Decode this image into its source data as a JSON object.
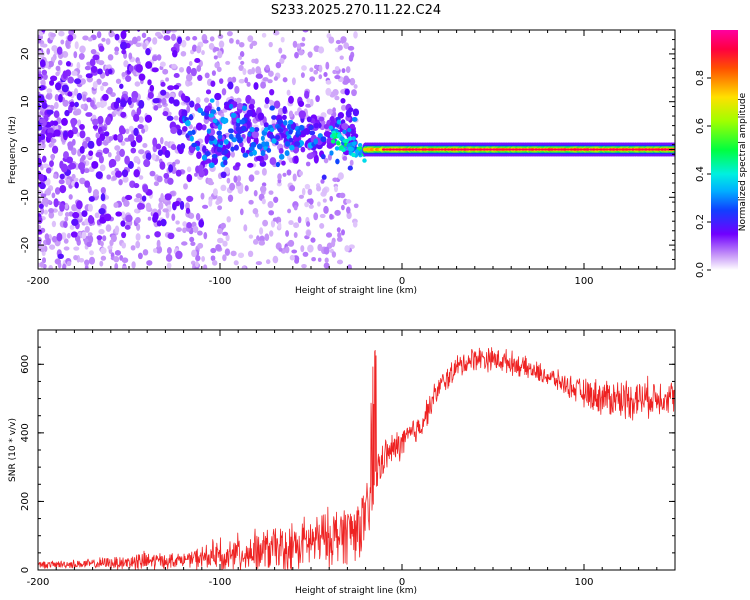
{
  "title": "S233.2025.270.11.22.C24",
  "chart_data": [
    {
      "type": "heatmap",
      "name": "spectrogram",
      "xlabel": "Height of straight line (km)",
      "ylabel": "Frequency (Hz)",
      "xlim": [
        -200,
        150
      ],
      "ylim": [
        -25,
        25
      ],
      "x_ticks": [
        "-200",
        "-100",
        "0",
        "100"
      ],
      "x_tick_values": [
        -200,
        -100,
        0,
        100
      ],
      "y_ticks": [
        "-20",
        "-10",
        "0",
        "10",
        "20"
      ],
      "y_tick_values": [
        -20,
        -10,
        0,
        10,
        20
      ],
      "colorbar": {
        "label": "Normalized spectral amplitude",
        "range": [
          0,
          1
        ],
        "ticks": [
          "0.0",
          "0.2",
          "0.4",
          "0.6",
          "0.8"
        ],
        "tick_values": [
          0.0,
          0.2,
          0.4,
          0.6,
          0.8
        ],
        "colormap": [
          "#ffffff",
          "#b870f0",
          "#6a00ff",
          "#1060ff",
          "#00e0ff",
          "#00ff40",
          "#c0ff00",
          "#ffd000",
          "#ff4000",
          "#ff0080"
        ]
      },
      "features": {
        "carrier_line": {
          "x_start": -20,
          "x_end": 150,
          "frequency": 0,
          "amplitude": 0.9
        },
        "scatter_region": {
          "x_start": -200,
          "x_end": -25,
          "freq_spread": 25
        }
      }
    },
    {
      "type": "line",
      "name": "snr",
      "xlabel": "Height of straight line (km)",
      "ylabel": "SNR (10 * v/v)",
      "xlim": [
        -200,
        150
      ],
      "ylim": [
        0,
        700
      ],
      "x_ticks": [
        "-200",
        "-100",
        "0",
        "100"
      ],
      "x_tick_values": [
        -200,
        -100,
        0,
        100
      ],
      "y_ticks": [
        "0",
        "200",
        "400",
        "600"
      ],
      "y_tick_values": [
        0,
        200,
        400,
        600
      ],
      "color": "#ee2222",
      "envelope": {
        "x": [
          -200,
          -170,
          -140,
          -120,
          -100,
          -80,
          -60,
          -40,
          -25,
          -18,
          -15,
          -10,
          0,
          10,
          20,
          30,
          40,
          50,
          60,
          70,
          80,
          90,
          100,
          110,
          120,
          130,
          140,
          150
        ],
        "mean": [
          15,
          18,
          25,
          30,
          40,
          55,
          70,
          95,
          120,
          170,
          270,
          330,
          370,
          420,
          530,
          590,
          620,
          615,
          605,
          585,
          565,
          540,
          515,
          505,
          500,
          500,
          505,
          510
        ],
        "noise": [
          8,
          12,
          25,
          15,
          45,
          50,
          60,
          70,
          80,
          70,
          70,
          40,
          40,
          35,
          30,
          30,
          30,
          30,
          28,
          25,
          25,
          25,
          35,
          45,
          50,
          50,
          45,
          40
        ]
      }
    }
  ]
}
